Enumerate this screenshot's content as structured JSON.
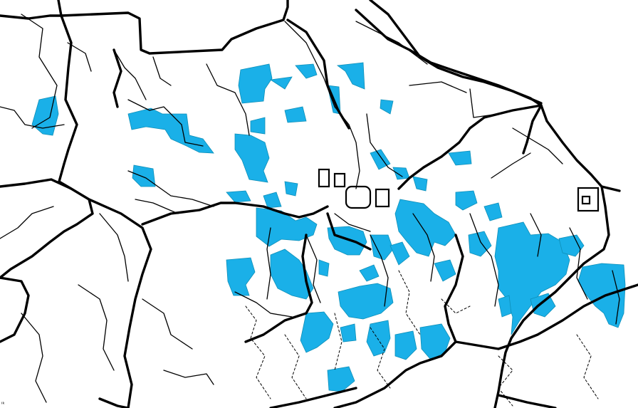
{
  "map": {
    "parcel_color": "#1ab0e8",
    "road_color": "#000000",
    "background_color": "#ffffff",
    "corner_text": "ᴵᵏ"
  }
}
